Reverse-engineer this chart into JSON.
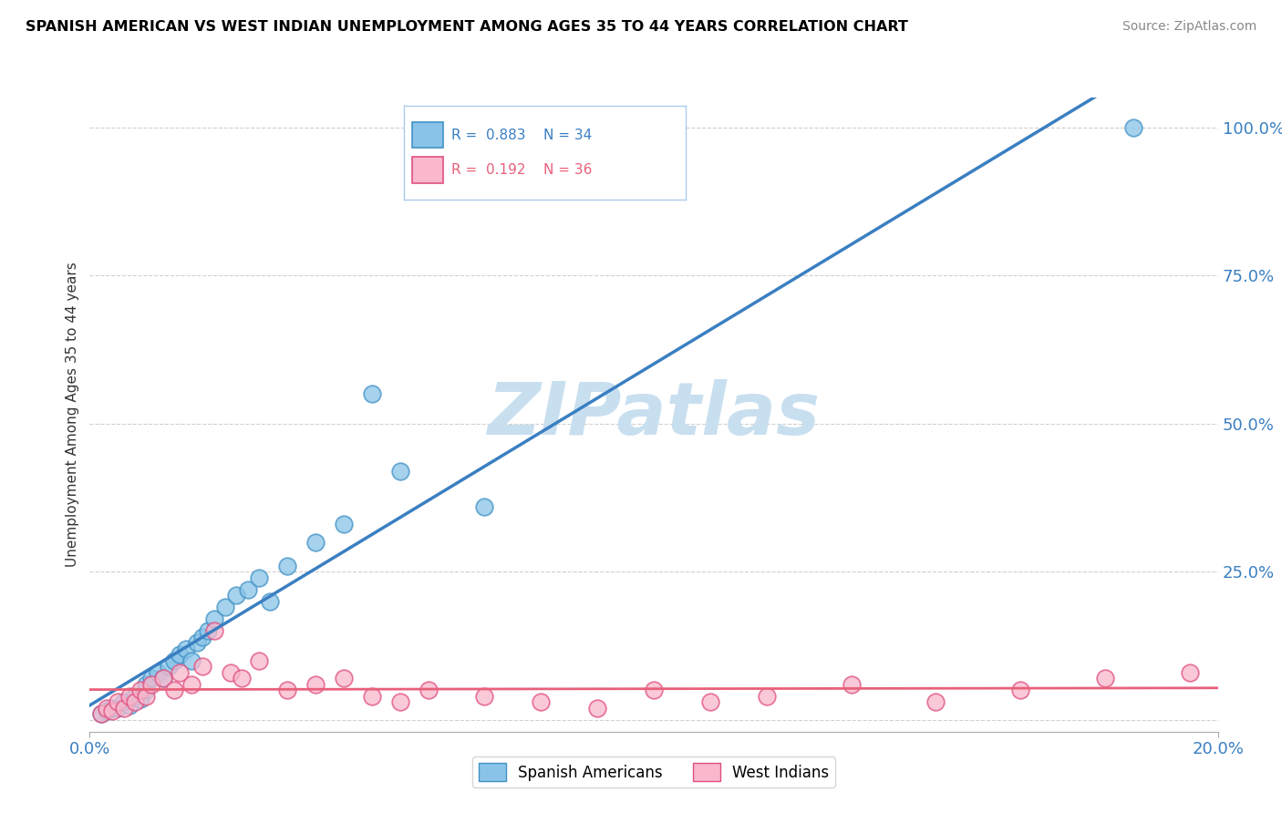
{
  "title": "SPANISH AMERICAN VS WEST INDIAN UNEMPLOYMENT AMONG AGES 35 TO 44 YEARS CORRELATION CHART",
  "source": "Source: ZipAtlas.com",
  "ylabel": "Unemployment Among Ages 35 to 44 years",
  "xmin": 0.0,
  "xmax": 20.0,
  "ymin": -2.0,
  "ymax": 105.0,
  "ytick_vals": [
    0,
    25,
    50,
    75,
    100
  ],
  "blue_color": "#89c4e8",
  "blue_edge": "#4292c6",
  "pink_color": "#f9b8cc",
  "pink_edge": "#e05080",
  "line_blue_color": "#3a7fc1",
  "line_pink_color": "#e8607a",
  "watermark_color": "#c8dff0",
  "blue_scatter_x": [
    0.2,
    0.3,
    0.4,
    0.5,
    0.6,
    0.7,
    0.8,
    0.9,
    1.0,
    1.0,
    1.1,
    1.2,
    1.3,
    1.4,
    1.5,
    1.6,
    1.7,
    1.8,
    1.9,
    2.0,
    2.1,
    2.2,
    2.4,
    2.6,
    2.8,
    3.0,
    3.2,
    3.5,
    4.0,
    4.5,
    5.0,
    5.5,
    7.0,
    18.5
  ],
  "blue_scatter_y": [
    1.0,
    1.5,
    2.0,
    2.0,
    3.0,
    2.5,
    4.0,
    3.5,
    5.0,
    6.0,
    7.0,
    8.0,
    7.0,
    9.0,
    10.0,
    11.0,
    12.0,
    10.0,
    13.0,
    14.0,
    15.0,
    17.0,
    19.0,
    21.0,
    22.0,
    24.0,
    20.0,
    26.0,
    30.0,
    33.0,
    55.0,
    42.0,
    36.0,
    100.0
  ],
  "pink_scatter_x": [
    0.2,
    0.3,
    0.4,
    0.5,
    0.6,
    0.7,
    0.8,
    0.9,
    1.0,
    1.1,
    1.3,
    1.5,
    1.6,
    1.8,
    2.0,
    2.2,
    2.5,
    2.7,
    3.0,
    3.5,
    4.0,
    4.5,
    5.0,
    5.5,
    6.0,
    7.0,
    8.0,
    9.0,
    10.0,
    11.0,
    12.0,
    13.5,
    15.0,
    16.5,
    18.0,
    19.5
  ],
  "pink_scatter_y": [
    1.0,
    2.0,
    1.5,
    3.0,
    2.0,
    4.0,
    3.0,
    5.0,
    4.0,
    6.0,
    7.0,
    5.0,
    8.0,
    6.0,
    9.0,
    15.0,
    8.0,
    7.0,
    10.0,
    5.0,
    6.0,
    7.0,
    4.0,
    3.0,
    5.0,
    4.0,
    3.0,
    2.0,
    5.0,
    3.0,
    4.0,
    6.0,
    3.0,
    5.0,
    7.0,
    8.0
  ]
}
